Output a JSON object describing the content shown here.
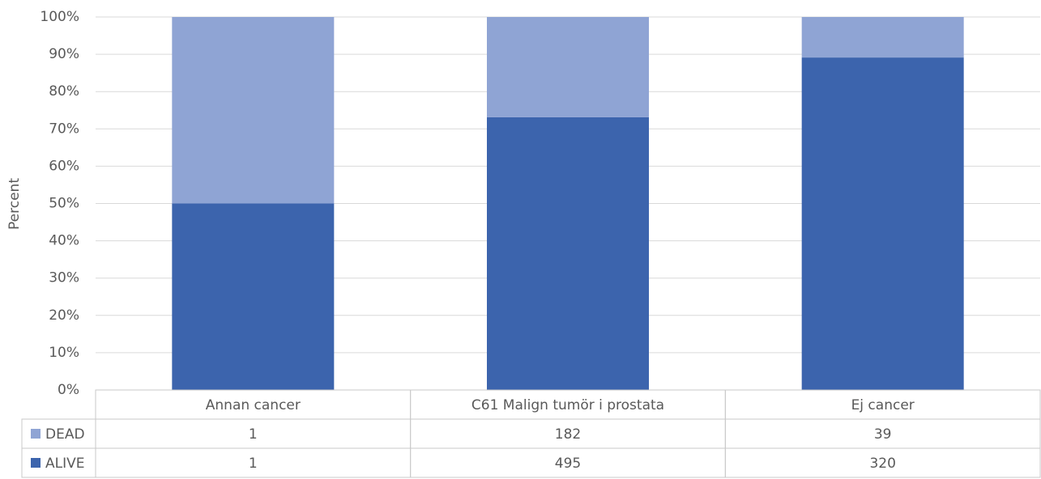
{
  "chart_data": {
    "type": "bar",
    "stack": "percent",
    "y_label": "Percent",
    "categories": [
      "Annan cancer",
      "C61 Malign tumör i prostata",
      "Ej cancer"
    ],
    "series": [
      {
        "name": "DEAD",
        "color": "#8fa4d4",
        "values": [
          1,
          182,
          39
        ]
      },
      {
        "name": "ALIVE",
        "color": "#3c64ad",
        "values": [
          1,
          495,
          320
        ]
      }
    ],
    "ylim": [
      0,
      100
    ],
    "yticks": [
      {
        "value": 0,
        "label": "0%"
      },
      {
        "value": 10,
        "label": "10%"
      },
      {
        "value": 20,
        "label": "20%"
      },
      {
        "value": 30,
        "label": "30%"
      },
      {
        "value": 40,
        "label": "40%"
      },
      {
        "value": 50,
        "label": "50%"
      },
      {
        "value": 60,
        "label": "60%"
      },
      {
        "value": 70,
        "label": "70%"
      },
      {
        "value": 80,
        "label": "80%"
      },
      {
        "value": 90,
        "label": "90%"
      },
      {
        "value": 100,
        "label": "100%"
      }
    ],
    "grid": true
  }
}
